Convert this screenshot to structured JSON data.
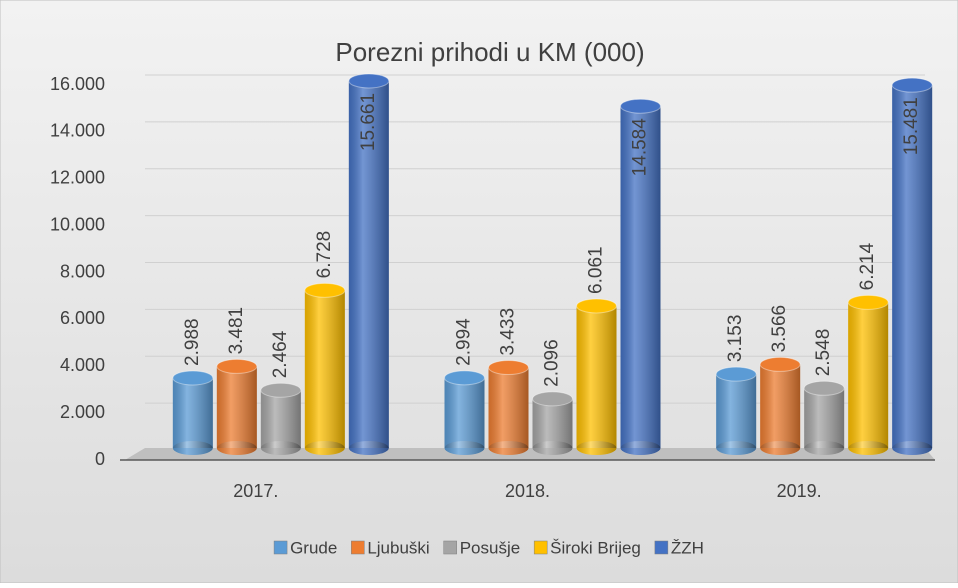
{
  "chart_data": {
    "type": "bar3d",
    "title": "Porezni prihodi u KM (000)",
    "categories": [
      "2017.",
      "2018.",
      "2019."
    ],
    "series": [
      {
        "name": "Grude",
        "color": "#5b9bd5",
        "values": [
          2988,
          2994,
          3153
        ],
        "value_labels": [
          "2.988",
          "2.994",
          "3.153"
        ]
      },
      {
        "name": "Ljubuški",
        "color": "#ed7d31",
        "values": [
          3481,
          3433,
          3566
        ],
        "value_labels": [
          "3.481",
          "3.433",
          "3.566"
        ]
      },
      {
        "name": "Posušje",
        "color": "#a5a5a5",
        "values": [
          2464,
          2096,
          2548
        ],
        "value_labels": [
          "2.464",
          "2.096",
          "2.548"
        ]
      },
      {
        "name": "Široki Brijeg",
        "color": "#ffc000",
        "values": [
          6728,
          6061,
          6214
        ],
        "value_labels": [
          "6.728",
          "6.061",
          "6.214"
        ]
      },
      {
        "name": "ŽZH",
        "color": "#4472c4",
        "values": [
          15661,
          14584,
          15481
        ],
        "value_labels": [
          "15.661",
          "14.584",
          "15.481"
        ]
      }
    ],
    "ylim": [
      0,
      16000
    ],
    "yticks": [
      0,
      {
        "value": 2000,
        "label": "2.000"
      },
      {
        "value": 4000,
        "label": "4.000"
      },
      {
        "value": 6000,
        "label": "6.000"
      },
      {
        "value": 8000,
        "label": "8.000"
      },
      {
        "value": 10000,
        "label": "10.000"
      },
      {
        "value": 12000,
        "label": "12.000"
      },
      {
        "value": 14000,
        "label": "14.000"
      },
      {
        "value": 16000,
        "label": "16.000"
      }
    ],
    "grid": true,
    "legend": "bottom"
  }
}
